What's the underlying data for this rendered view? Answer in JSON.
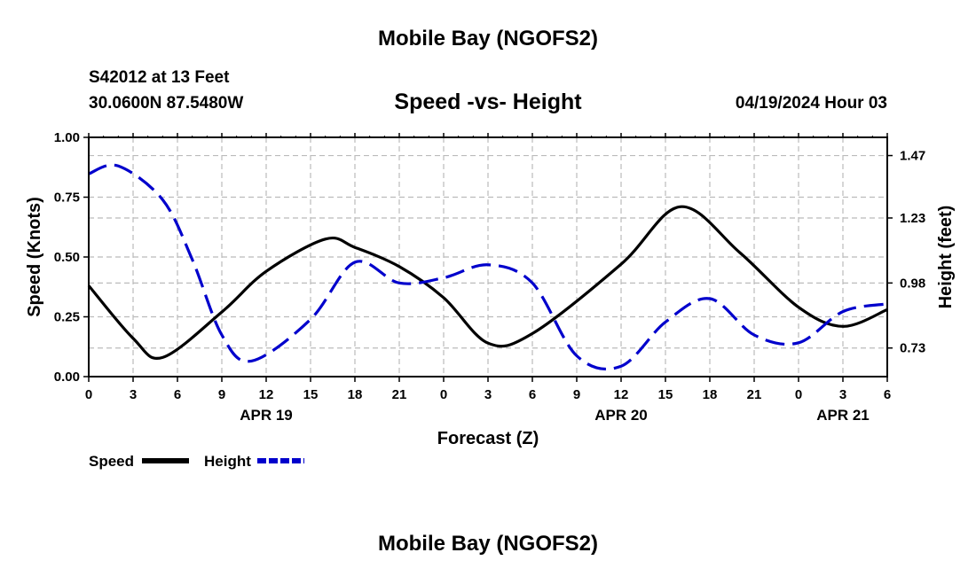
{
  "page": {
    "top_title": "Mobile Bay (NGOFS2)",
    "bottom_title": "Mobile Bay (NGOFS2)",
    "station": "S42012 at 13 Feet",
    "coords": "30.0600N  87.5480W",
    "datetime": "04/19/2024 Hour 03"
  },
  "chart_data": {
    "type": "line",
    "title": "Speed -vs- Height",
    "xlabel": "Forecast (Z)",
    "ylabel": "Speed (Knots)",
    "y2label": "Height (feet)",
    "xlim": [
      0,
      54
    ],
    "ylim": [
      0,
      1
    ],
    "y2lim": [
      0.62,
      1.54
    ],
    "grid": true,
    "x_ticks": [
      0,
      3,
      6,
      9,
      12,
      15,
      18,
      21,
      24,
      27,
      30,
      33,
      36,
      39,
      42,
      45,
      48,
      51,
      54
    ],
    "x_tick_labels": [
      "0",
      "3",
      "6",
      "9",
      "12",
      "15",
      "18",
      "21",
      "0",
      "3",
      "6",
      "9",
      "12",
      "15",
      "18",
      "21",
      "0",
      "3",
      "6"
    ],
    "y_ticks": [
      0,
      0.25,
      0.5,
      0.75,
      1.0
    ],
    "y_tick_labels": [
      "0.00",
      "0.25",
      "0.50",
      "0.75",
      "1.00"
    ],
    "y2_ticks": [
      0.73,
      0.98,
      1.23,
      1.47
    ],
    "y2_tick_labels": [
      "0.73",
      "0.98",
      "1.23",
      "1.47"
    ],
    "date_labels": [
      {
        "x": 12,
        "label": "APR 19"
      },
      {
        "x": 36,
        "label": "APR 20"
      },
      {
        "x": 51,
        "label": "APR 21"
      }
    ],
    "series": [
      {
        "name": "Speed",
        "axis": "left",
        "color": "#000000",
        "dash": "solid",
        "x": [
          0,
          3,
          5,
          9,
          12,
          16,
          18,
          21,
          24,
          27,
          30,
          36,
          40,
          44,
          48,
          51,
          54
        ],
        "values": [
          0.38,
          0.16,
          0.08,
          0.27,
          0.44,
          0.575,
          0.54,
          0.46,
          0.33,
          0.14,
          0.18,
          0.47,
          0.71,
          0.52,
          0.29,
          0.21,
          0.28
        ]
      },
      {
        "name": "Height",
        "axis": "right",
        "color": "#0000cc",
        "dash": "dashed",
        "x": [
          0,
          2,
          5,
          7,
          9,
          11,
          15,
          18,
          21,
          24,
          27,
          30,
          33,
          36,
          39,
          42,
          45,
          48,
          51,
          54
        ],
        "values": [
          1.4,
          1.43,
          1.3,
          1.07,
          0.78,
          0.68,
          0.84,
          1.06,
          0.98,
          1.0,
          1.05,
          0.98,
          0.7,
          0.66,
          0.83,
          0.92,
          0.78,
          0.75,
          0.87,
          0.9
        ]
      }
    ],
    "legend": [
      {
        "label": "Speed",
        "color": "#000000",
        "dash": "solid"
      },
      {
        "label": "Height",
        "color": "#0000cc",
        "dash": "dashed"
      }
    ],
    "legend_position": "bottom-left"
  }
}
